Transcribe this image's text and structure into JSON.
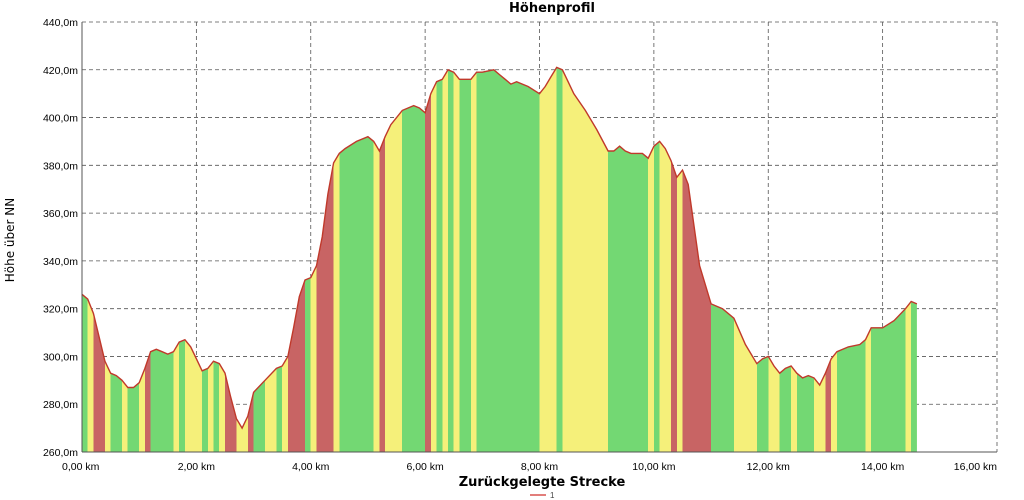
{
  "chart_data": {
    "type": "area",
    "title": "Höhenprofil",
    "xlabel": "Zurückgelegte Strecke",
    "ylabel": "Höhe über NN",
    "xlim": [
      0,
      16
    ],
    "ylim": [
      260,
      440
    ],
    "x_ticks": [
      "0,00 km",
      "2,00 km",
      "4,00 km",
      "6,00 km",
      "8,00 km",
      "10,00 km",
      "12,00 km",
      "14,00 km",
      "16,00 km"
    ],
    "y_ticks": [
      "260,0m",
      "280,0m",
      "300,0m",
      "320,0m",
      "340,0m",
      "360,0m",
      "380,0m",
      "400,0m",
      "420,0m",
      "440,0m"
    ],
    "grid": true,
    "legend": [
      {
        "label": "1",
        "color": "#d9534f"
      }
    ],
    "line_color": "#c0392b",
    "gradient_colors": {
      "flat": "#73d873",
      "moderate": "#f5f07a",
      "steep": "#c86464"
    },
    "series": [
      {
        "name": "1",
        "x": [
          0.0,
          0.1,
          0.2,
          0.3,
          0.4,
          0.5,
          0.6,
          0.7,
          0.8,
          0.9,
          1.0,
          1.1,
          1.2,
          1.3,
          1.4,
          1.5,
          1.6,
          1.7,
          1.8,
          1.9,
          2.0,
          2.1,
          2.2,
          2.3,
          2.4,
          2.5,
          2.6,
          2.7,
          2.8,
          2.9,
          3.0,
          3.2,
          3.4,
          3.5,
          3.6,
          3.7,
          3.8,
          3.9,
          4.0,
          4.1,
          4.2,
          4.3,
          4.4,
          4.5,
          4.6,
          4.8,
          5.0,
          5.1,
          5.2,
          5.3,
          5.4,
          5.6,
          5.8,
          5.9,
          6.0,
          6.1,
          6.2,
          6.3,
          6.4,
          6.5,
          6.6,
          6.8,
          6.9,
          7.0,
          7.2,
          7.3,
          7.4,
          7.5,
          7.6,
          7.8,
          8.0,
          8.1,
          8.2,
          8.3,
          8.4,
          8.5,
          8.6,
          8.8,
          9.0,
          9.2,
          9.3,
          9.4,
          9.5,
          9.6,
          9.8,
          9.9,
          10.0,
          10.1,
          10.2,
          10.3,
          10.4,
          10.5,
          10.6,
          10.7,
          10.8,
          11.0,
          11.2,
          11.4,
          11.6,
          11.8,
          11.9,
          12.0,
          12.1,
          12.2,
          12.3,
          12.4,
          12.5,
          12.6,
          12.7,
          12.8,
          12.9,
          13.0,
          13.1,
          13.2,
          13.4,
          13.6,
          13.7,
          13.8,
          14.0,
          14.2,
          14.4,
          14.5,
          14.6
        ],
        "y": [
          326,
          324,
          318,
          308,
          298,
          293,
          292,
          290,
          287,
          287,
          289,
          295,
          302,
          303,
          302,
          301,
          302,
          306,
          307,
          304,
          299,
          294,
          295,
          298,
          297,
          293,
          283,
          274,
          270,
          275,
          285,
          290,
          295,
          296,
          300,
          312,
          325,
          332,
          333,
          338,
          350,
          368,
          381,
          385,
          387,
          390,
          392,
          390,
          386,
          392,
          397,
          403,
          405,
          404,
          402,
          410,
          415,
          416,
          420,
          419,
          416,
          416,
          419,
          419,
          420,
          418,
          416,
          414,
          415,
          413,
          410,
          413,
          417,
          421,
          420,
          415,
          410,
          403,
          395,
          386,
          386,
          388,
          386,
          385,
          385,
          383,
          388,
          390,
          387,
          382,
          375,
          378,
          372,
          355,
          338,
          322,
          320,
          316,
          305,
          297,
          299,
          300,
          296,
          293,
          295,
          296,
          293,
          291,
          292,
          291,
          288,
          293,
          299,
          302,
          304,
          305,
          307,
          312,
          312,
          315,
          320,
          323,
          322
        ]
      }
    ]
  }
}
